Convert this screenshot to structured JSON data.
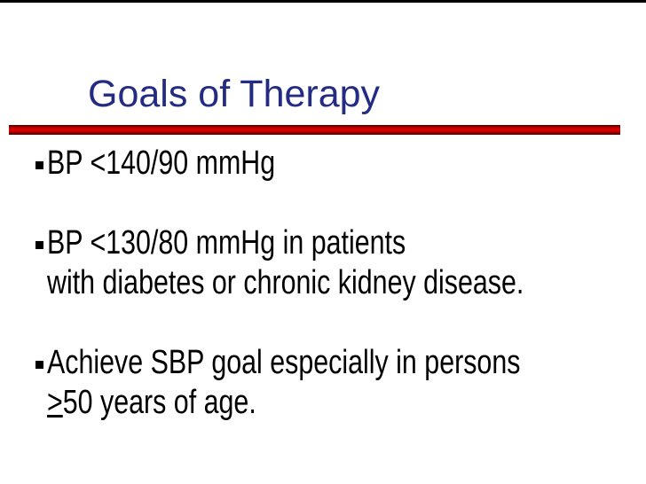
{
  "slide": {
    "title": "Goals of Therapy",
    "bullets": [
      {
        "line1": "BP <140/90 mmHg"
      },
      {
        "line1": "BP <130/80 mmHg in patients",
        "line2": "with diabetes or chronic kidney disease."
      },
      {
        "line1": "Achieve SBP goal especially in persons",
        "line2_gte_symbol": ">",
        "line2_rest": "50 years of age."
      }
    ],
    "colors": {
      "title_text": "#232C82",
      "body_text": "#000000",
      "accent_rule_red": "#D40000",
      "rule_red_dark_edge": "#420000",
      "top_rule_black": "#000000",
      "background": "#FFFFFF"
    },
    "icons": {
      "bullet_style": "square-bullet-icon"
    }
  }
}
